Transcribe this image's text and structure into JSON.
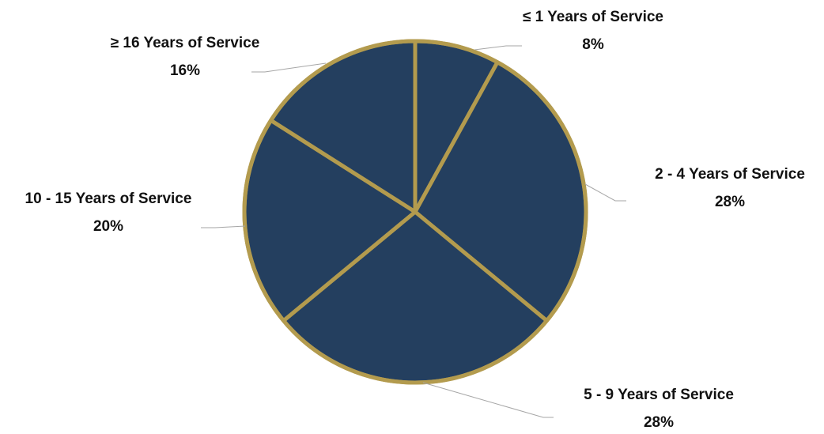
{
  "chart_data": {
    "type": "pie",
    "colors": {
      "fill": "#243f5f",
      "border": "#b39b4e",
      "leader": "#a6a6a6",
      "label_text": "#111111"
    },
    "slices": [
      {
        "label": "≤ 1 Years of Service",
        "value": 8,
        "value_label": "8%"
      },
      {
        "label": "2 - 4 Years of Service",
        "value": 28,
        "value_label": "28%"
      },
      {
        "label": "5 - 9 Years of Service",
        "value": 28,
        "value_label": "28%"
      },
      {
        "label": "10 - 15 Years of Service",
        "value": 20,
        "value_label": "20%"
      },
      {
        "label": "≥ 16 Years of Service",
        "value": 16,
        "value_label": "16%"
      }
    ]
  }
}
